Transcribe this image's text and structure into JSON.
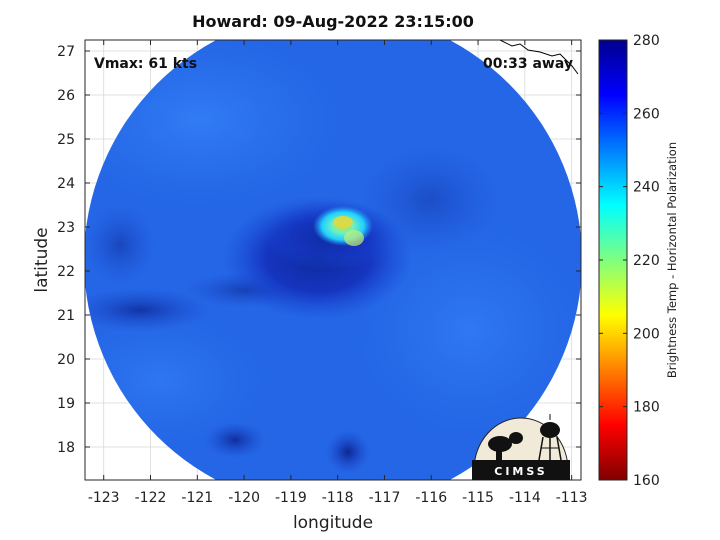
{
  "title": "Howard: 09-Aug-2022 23:15:00",
  "annotations": {
    "vmax": "Vmax: 61 kts",
    "time_away": "00:33 away"
  },
  "axes": {
    "xlabel": "longitude",
    "ylabel": "latitude",
    "xticks": [
      -123,
      -122,
      -121,
      -120,
      -119,
      -118,
      -117,
      -116,
      -115,
      -114,
      -113
    ],
    "yticks": [
      18,
      19,
      20,
      21,
      22,
      23,
      24,
      25,
      26,
      27
    ],
    "xlim": [
      -123.4,
      -112.8
    ],
    "ylim": [
      17.25,
      27.25
    ],
    "grid": true
  },
  "colorbar": {
    "label": "Brightness Temp - Horizontal Polarization",
    "ticks": [
      160,
      180,
      200,
      220,
      240,
      260,
      280
    ],
    "range": [
      160,
      280
    ],
    "colormap": "jet"
  },
  "logo": {
    "text": "CIMSS"
  },
  "map_data": {
    "storm_center_lon": -118.3,
    "storm_center_lat": 22.3,
    "warm_spot_lon": -117.9,
    "warm_spot_lat": 23.0
  }
}
